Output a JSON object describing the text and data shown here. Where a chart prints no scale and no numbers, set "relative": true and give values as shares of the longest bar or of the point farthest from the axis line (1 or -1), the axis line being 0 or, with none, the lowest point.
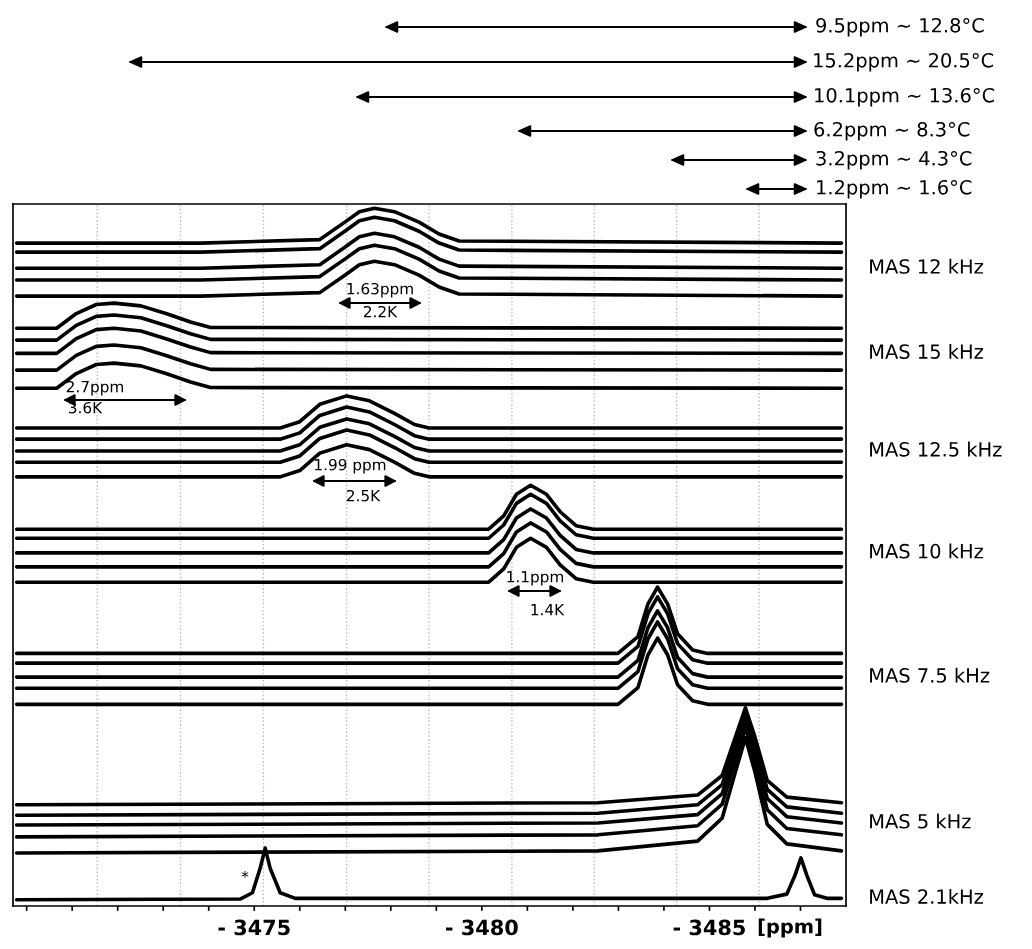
{
  "chart_data": {
    "type": "line",
    "relative": true,
    "tick_labels": "x",
    "xlabel": "[ppm]",
    "xlim": [
      -3469.7,
      -3488.0
    ],
    "xticks": [
      {
        "value": -3470,
        "label": null
      },
      {
        "value": -3471,
        "label": null
      },
      {
        "value": -3472,
        "label": null
      },
      {
        "value": -3473,
        "label": null
      },
      {
        "value": -3474,
        "label": null
      },
      {
        "value": -3475,
        "label": "- 3475"
      },
      {
        "value": -3476,
        "label": null
      },
      {
        "value": -3477,
        "label": null
      },
      {
        "value": -3478,
        "label": null
      },
      {
        "value": -3479,
        "label": null
      },
      {
        "value": -3480,
        "label": "- 3480"
      },
      {
        "value": -3481,
        "label": null
      },
      {
        "value": -3482,
        "label": null
      },
      {
        "value": -3483,
        "label": null
      },
      {
        "value": -3484,
        "label": null
      },
      {
        "value": -3485,
        "label": "- 3485"
      },
      {
        "value": -3486,
        "label": null
      },
      {
        "value": -3487,
        "label": null
      }
    ],
    "ref_lines": [
      {
        "axis": "x",
        "value": -3471.55,
        "color": "#bbbbbb",
        "line_style": "dotted"
      },
      {
        "axis": "x",
        "value": -3473.38,
        "color": "#bbbbbb",
        "line_style": "dotted"
      },
      {
        "axis": "x",
        "value": -3475.2,
        "color": "#bbbbbb",
        "line_style": "dotted"
      },
      {
        "axis": "x",
        "value": -3477.03,
        "color": "#bbbbbb",
        "line_style": "dotted"
      },
      {
        "axis": "x",
        "value": -3478.84,
        "color": "#bbbbbb",
        "line_style": "dotted"
      },
      {
        "axis": "x",
        "value": -3480.66,
        "color": "#bbbbbb",
        "line_style": "dotted"
      },
      {
        "axis": "x",
        "value": -3482.47,
        "color": "#bbbbbb",
        "line_style": "dotted"
      },
      {
        "axis": "x",
        "value": -3484.28,
        "color": "#bbbbbb",
        "line_style": "dotted"
      },
      {
        "axis": "x",
        "value": -3486.09,
        "color": "#bbbbbb",
        "line_style": "dotted"
      }
    ],
    "series": [
      {
        "color": "#000000",
        "x": [
          -3469.78,
          -3473.82,
          -3476.44,
          -3476.99,
          -3477.31,
          -3477.64,
          -3478.08,
          -3478.62,
          -3479.06,
          -3479.5,
          -3487.9
        ],
        "values": [
          0.95,
          0.95,
          0.955,
          0.98,
          0.995,
          1.0,
          0.995,
          0.98,
          0.963,
          0.953,
          0.95
        ]
      },
      {
        "color": "#000000",
        "x": [
          -3469.78,
          -3473.82,
          -3476.44,
          -3476.99,
          -3477.31,
          -3477.64,
          -3478.08,
          -3478.62,
          -3479.06,
          -3479.5,
          -3487.9
        ],
        "values": [
          0.937,
          0.937,
          0.942,
          0.967,
          0.982,
          0.987,
          0.982,
          0.967,
          0.95,
          0.94,
          0.937
        ]
      },
      {
        "name": "MAS 12 kHz",
        "color": "#000000",
        "x": [
          -3469.78,
          -3473.82,
          -3476.44,
          -3476.99,
          -3477.31,
          -3477.64,
          -3478.08,
          -3478.62,
          -3479.06,
          -3479.5,
          -3487.9
        ],
        "values": [
          0.914,
          0.914,
          0.919,
          0.944,
          0.959,
          0.964,
          0.959,
          0.944,
          0.927,
          0.917,
          0.914
        ]
      },
      {
        "color": "#000000",
        "x": [
          -3469.78,
          -3473.82,
          -3476.44,
          -3476.99,
          -3477.31,
          -3477.64,
          -3478.08,
          -3478.62,
          -3479.06,
          -3479.5,
          -3487.9
        ],
        "values": [
          0.897,
          0.897,
          0.902,
          0.927,
          0.942,
          0.947,
          0.942,
          0.927,
          0.91,
          0.9,
          0.897
        ]
      },
      {
        "color": "#000000",
        "x": [
          -3469.78,
          -3473.82,
          -3476.44,
          -3476.99,
          -3477.31,
          -3477.64,
          -3478.08,
          -3478.62,
          -3479.06,
          -3479.5,
          -3487.9
        ],
        "values": [
          0.874,
          0.874,
          0.879,
          0.904,
          0.919,
          0.924,
          0.919,
          0.904,
          0.887,
          0.877,
          0.874
        ]
      },
      {
        "color": "#000000",
        "x": [
          -3469.78,
          -3470.66,
          -3471.09,
          -3471.53,
          -3471.92,
          -3472.51,
          -3473.06,
          -3473.6,
          -3474.04,
          -3487.9
        ],
        "values": [
          0.828,
          0.828,
          0.849,
          0.862,
          0.864,
          0.86,
          0.849,
          0.837,
          0.829,
          0.828
        ]
      },
      {
        "color": "#000000",
        "x": [
          -3469.78,
          -3470.66,
          -3471.09,
          -3471.53,
          -3471.92,
          -3472.51,
          -3473.06,
          -3473.6,
          -3474.04,
          -3487.9
        ],
        "values": [
          0.811,
          0.811,
          0.832,
          0.845,
          0.847,
          0.843,
          0.832,
          0.82,
          0.812,
          0.811
        ]
      },
      {
        "name": "MAS 15 kHz",
        "color": "#000000",
        "x": [
          -3469.78,
          -3470.66,
          -3471.09,
          -3471.53,
          -3471.92,
          -3472.51,
          -3473.06,
          -3473.6,
          -3474.04,
          -3487.9
        ],
        "values": [
          0.792,
          0.792,
          0.813,
          0.826,
          0.828,
          0.824,
          0.813,
          0.801,
          0.793,
          0.792
        ]
      },
      {
        "color": "#000000",
        "x": [
          -3469.78,
          -3470.66,
          -3471.09,
          -3471.53,
          -3471.92,
          -3472.51,
          -3473.06,
          -3473.6,
          -3474.04,
          -3487.9
        ],
        "values": [
          0.768,
          0.768,
          0.789,
          0.802,
          0.804,
          0.8,
          0.789,
          0.777,
          0.769,
          0.768
        ]
      },
      {
        "color": "#000000",
        "x": [
          -3469.78,
          -3470.66,
          -3471.09,
          -3471.53,
          -3471.92,
          -3472.51,
          -3473.06,
          -3473.6,
          -3474.04,
          -3487.9
        ],
        "values": [
          0.742,
          0.742,
          0.763,
          0.776,
          0.778,
          0.774,
          0.763,
          0.751,
          0.743,
          0.742
        ]
      },
      {
        "color": "#000000",
        "x": [
          -3469.78,
          -3475.57,
          -3476.0,
          -3476.44,
          -3477.03,
          -3477.53,
          -3478.08,
          -3478.52,
          -3478.84,
          -3487.9
        ],
        "values": [
          0.685,
          0.685,
          0.694,
          0.719,
          0.731,
          0.724,
          0.706,
          0.69,
          0.685,
          0.685
        ]
      },
      {
        "color": "#000000",
        "x": [
          -3469.78,
          -3475.57,
          -3476.0,
          -3476.44,
          -3477.03,
          -3477.53,
          -3478.08,
          -3478.52,
          -3478.84,
          -3487.9
        ],
        "values": [
          0.669,
          0.669,
          0.678,
          0.703,
          0.715,
          0.708,
          0.69,
          0.674,
          0.669,
          0.669
        ]
      },
      {
        "name": "MAS 12.5 kHz",
        "color": "#000000",
        "x": [
          -3469.78,
          -3475.57,
          -3476.0,
          -3476.44,
          -3477.03,
          -3477.53,
          -3478.08,
          -3478.52,
          -3478.84,
          -3487.9
        ],
        "values": [
          0.652,
          0.652,
          0.661,
          0.686,
          0.698,
          0.691,
          0.673,
          0.657,
          0.652,
          0.652
        ]
      },
      {
        "color": "#000000",
        "x": [
          -3469.78,
          -3475.57,
          -3476.0,
          -3476.44,
          -3477.03,
          -3477.53,
          -3478.08,
          -3478.52,
          -3478.84,
          -3487.9
        ],
        "values": [
          0.636,
          0.636,
          0.645,
          0.67,
          0.682,
          0.675,
          0.657,
          0.641,
          0.636,
          0.636
        ]
      },
      {
        "color": "#000000",
        "x": [
          -3469.78,
          -3475.57,
          -3476.0,
          -3476.44,
          -3477.03,
          -3477.53,
          -3478.08,
          -3478.52,
          -3478.84,
          -3487.9
        ],
        "values": [
          0.615,
          0.615,
          0.624,
          0.649,
          0.661,
          0.654,
          0.636,
          0.62,
          0.615,
          0.615
        ]
      },
      {
        "color": "#000000",
        "x": [
          -3469.78,
          -3480.15,
          -3480.48,
          -3480.76,
          -3481.07,
          -3481.42,
          -3481.72,
          -3482.07,
          -3482.45,
          -3487.9
        ],
        "values": [
          0.54,
          0.54,
          0.559,
          0.59,
          0.603,
          0.59,
          0.565,
          0.545,
          0.54,
          0.54
        ]
      },
      {
        "color": "#000000",
        "x": [
          -3469.78,
          -3480.15,
          -3480.48,
          -3480.76,
          -3481.07,
          -3481.42,
          -3481.72,
          -3482.07,
          -3482.45,
          -3487.9
        ],
        "values": [
          0.527,
          0.527,
          0.546,
          0.577,
          0.59,
          0.577,
          0.552,
          0.532,
          0.527,
          0.527
        ]
      },
      {
        "name": "MAS 10 kHz",
        "color": "#000000",
        "x": [
          -3469.78,
          -3480.15,
          -3480.48,
          -3480.76,
          -3481.07,
          -3481.42,
          -3481.72,
          -3482.07,
          -3482.45,
          -3487.9
        ],
        "values": [
          0.506,
          0.506,
          0.525,
          0.556,
          0.569,
          0.556,
          0.531,
          0.511,
          0.506,
          0.506
        ]
      },
      {
        "color": "#000000",
        "x": [
          -3469.78,
          -3480.15,
          -3480.48,
          -3480.76,
          -3481.07,
          -3481.42,
          -3481.72,
          -3482.07,
          -3482.45,
          -3487.9
        ],
        "values": [
          0.486,
          0.486,
          0.505,
          0.536,
          0.549,
          0.536,
          0.511,
          0.491,
          0.486,
          0.486
        ]
      },
      {
        "color": "#000000",
        "x": [
          -3469.78,
          -3480.15,
          -3480.48,
          -3480.76,
          -3481.07,
          -3481.42,
          -3481.72,
          -3482.07,
          -3482.45,
          -3487.9
        ],
        "values": [
          0.464,
          0.464,
          0.483,
          0.514,
          0.527,
          0.514,
          0.489,
          0.469,
          0.464,
          0.464
        ]
      },
      {
        "color": "#000000",
        "x": [
          -3469.78,
          -3482.99,
          -3483.43,
          -3483.65,
          -3483.86,
          -3484.08,
          -3484.3,
          -3484.63,
          -3484.96,
          -3487.9
        ],
        "values": [
          0.362,
          0.362,
          0.386,
          0.433,
          0.457,
          0.433,
          0.39,
          0.367,
          0.362,
          0.362
        ]
      },
      {
        "color": "#000000",
        "x": [
          -3469.78,
          -3482.99,
          -3483.43,
          -3483.65,
          -3483.86,
          -3484.08,
          -3484.3,
          -3484.63,
          -3484.96,
          -3487.9
        ],
        "values": [
          0.348,
          0.348,
          0.372,
          0.419,
          0.443,
          0.419,
          0.376,
          0.353,
          0.348,
          0.348
        ]
      },
      {
        "name": "MAS 7.5 kHz",
        "color": "#000000",
        "x": [
          -3469.78,
          -3482.99,
          -3483.43,
          -3483.65,
          -3483.86,
          -3484.08,
          -3484.3,
          -3484.63,
          -3484.96,
          -3487.9
        ],
        "values": [
          0.328,
          0.328,
          0.352,
          0.399,
          0.423,
          0.399,
          0.356,
          0.333,
          0.328,
          0.328
        ]
      },
      {
        "color": "#000000",
        "x": [
          -3469.78,
          -3482.99,
          -3483.43,
          -3483.65,
          -3483.86,
          -3484.08,
          -3484.3,
          -3484.63,
          -3484.96,
          -3487.9
        ],
        "values": [
          0.312,
          0.312,
          0.336,
          0.383,
          0.407,
          0.383,
          0.34,
          0.317,
          0.312,
          0.312
        ]
      },
      {
        "color": "#000000",
        "x": [
          -3469.78,
          -3482.99,
          -3483.43,
          -3483.65,
          -3483.86,
          -3484.08,
          -3484.3,
          -3484.63,
          -3484.96,
          -3487.9
        ],
        "values": [
          0.289,
          0.289,
          0.313,
          0.36,
          0.384,
          0.36,
          0.317,
          0.294,
          0.289,
          0.289
        ]
      },
      {
        "color": "#000000",
        "x": [
          -3469.78,
          -3482.55,
          -3484.74,
          -3485.28,
          -3485.57,
          -3485.79,
          -3486.0,
          -3486.27,
          -3486.7,
          -3487.9
        ],
        "values": [
          0.145,
          0.148,
          0.159,
          0.187,
          0.242,
          0.284,
          0.242,
          0.18,
          0.156,
          0.148
        ]
      },
      {
        "color": "#000000",
        "x": [
          -3469.78,
          -3482.55,
          -3484.74,
          -3485.28,
          -3485.57,
          -3485.79,
          -3486.0,
          -3486.27,
          -3486.7,
          -3487.9
        ],
        "values": [
          0.13,
          0.133,
          0.145,
          0.174,
          0.232,
          0.276,
          0.232,
          0.167,
          0.142,
          0.133
        ]
      },
      {
        "name": "MAS 5 kHz",
        "color": "#000000",
        "x": [
          -3469.78,
          -3482.55,
          -3484.74,
          -3485.28,
          -3485.57,
          -3485.79,
          -3486.0,
          -3486.27,
          -3486.7,
          -3487.9
        ],
        "values": [
          0.116,
          0.119,
          0.131,
          0.161,
          0.221,
          0.266,
          0.221,
          0.154,
          0.128,
          0.119
        ]
      },
      {
        "color": "#000000",
        "x": [
          -3469.78,
          -3482.55,
          -3484.74,
          -3485.28,
          -3485.57,
          -3485.79,
          -3486.0,
          -3486.27,
          -3486.7,
          -3487.9
        ],
        "values": [
          0.099,
          0.102,
          0.115,
          0.146,
          0.208,
          0.255,
          0.208,
          0.138,
          0.111,
          0.102
        ]
      },
      {
        "color": "#000000",
        "x": [
          -3469.78,
          -3482.55,
          -3484.74,
          -3485.28,
          -3485.57,
          -3485.79,
          -3486.0,
          -3486.27,
          -3486.7,
          -3487.9
        ],
        "values": [
          0.076,
          0.079,
          0.093,
          0.126,
          0.192,
          0.241,
          0.192,
          0.117,
          0.089,
          0.079
        ]
      },
      {
        "name": "MAS 2.1kHz",
        "color": "#000000",
        "x": [
          -3469.78,
          -3474.69,
          -3474.96,
          -3475.13,
          -3475.24,
          -3475.35,
          -3475.57,
          -3475.9,
          -3486.27,
          -3486.7,
          -3486.88,
          -3487.01,
          -3487.14,
          -3487.31,
          -3487.58,
          -3487.9
        ],
        "values": [
          0.009,
          0.01,
          0.019,
          0.054,
          0.083,
          0.054,
          0.019,
          0.011,
          0.011,
          0.017,
          0.044,
          0.069,
          0.044,
          0.016,
          0.011,
          0.011
        ]
      }
    ],
    "annotations": [
      "9.5ppm ~ 12.8°C",
      "15.2ppm ~ 20.5°C",
      "10.1ppm ~ 13.6°C",
      "6.2ppm ~ 8.3°C",
      "3.2ppm ~ 4.3°C",
      "1.2ppm ~ 1.6°C",
      "1.63ppm",
      "2.2K",
      "2.7ppm",
      "3.6K",
      "1.99 ppm",
      "2.5K",
      "1.1ppm",
      "1.4K",
      "*"
    ]
  }
}
